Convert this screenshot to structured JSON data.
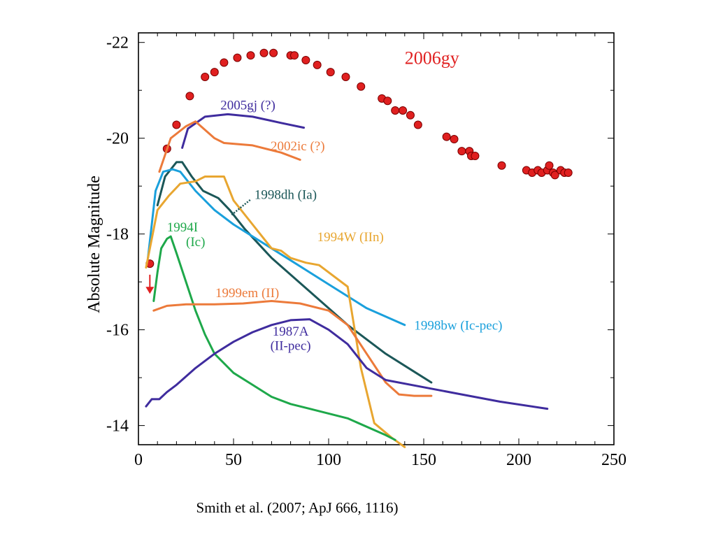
{
  "caption": "Smith et al. (2007; ApJ 666, 1116)",
  "chart_data": {
    "type": "line",
    "title": "",
    "xlabel": "",
    "ylabel": "Absolute Magnitude",
    "xlim": [
      0,
      250
    ],
    "ylim": [
      -13.6,
      -22.2
    ],
    "y_inverted": true,
    "x_ticks": [
      0,
      50,
      100,
      150,
      200,
      250
    ],
    "y_ticks": [
      -14,
      -16,
      -18,
      -20,
      -22
    ],
    "grid": false,
    "minor_ticks": true,
    "series": [
      {
        "name": "2006gy",
        "type": "scatter",
        "color": "#e02020",
        "points": [
          [
            6,
            -17.38
          ],
          [
            15,
            -19.78
          ],
          [
            20,
            -20.28
          ],
          [
            27,
            -20.88
          ],
          [
            35,
            -21.28
          ],
          [
            40,
            -21.38
          ],
          [
            45,
            -21.58
          ],
          [
            52,
            -21.68
          ],
          [
            59,
            -21.73
          ],
          [
            66,
            -21.78
          ],
          [
            71,
            -21.78
          ],
          [
            80,
            -21.73
          ],
          [
            82,
            -21.73
          ],
          [
            88,
            -21.63
          ],
          [
            94,
            -21.53
          ],
          [
            101,
            -21.38
          ],
          [
            109,
            -21.28
          ],
          [
            117,
            -21.08
          ],
          [
            128,
            -20.83
          ],
          [
            131,
            -20.78
          ],
          [
            135,
            -20.58
          ],
          [
            139,
            -20.58
          ],
          [
            143,
            -20.48
          ],
          [
            147,
            -20.28
          ],
          [
            162,
            -20.03
          ],
          [
            166,
            -19.98
          ],
          [
            170,
            -19.73
          ],
          [
            174,
            -19.73
          ],
          [
            175,
            -19.63
          ],
          [
            177,
            -19.63
          ],
          [
            191,
            -19.43
          ],
          [
            204,
            -19.33
          ],
          [
            207,
            -19.28
          ],
          [
            210,
            -19.33
          ],
          [
            212,
            -19.28
          ],
          [
            215,
            -19.33
          ],
          [
            216,
            -19.43
          ],
          [
            218,
            -19.28
          ],
          [
            219,
            -19.23
          ],
          [
            222,
            -19.33
          ],
          [
            224,
            -19.28
          ],
          [
            226,
            -19.28
          ]
        ]
      },
      {
        "name": "2005gj (?)",
        "color": "#3f2c9e",
        "points": [
          [
            23,
            -19.8
          ],
          [
            26,
            -20.2
          ],
          [
            35,
            -20.45
          ],
          [
            47,
            -20.5
          ],
          [
            60,
            -20.45
          ],
          [
            75,
            -20.32
          ],
          [
            87,
            -20.22
          ]
        ]
      },
      {
        "name": "2002ic (?)",
        "color": "#ec7a3a",
        "points": [
          [
            11,
            -19.3
          ],
          [
            17,
            -20.0
          ],
          [
            25,
            -20.25
          ],
          [
            30,
            -20.35
          ],
          [
            40,
            -20.0
          ],
          [
            45,
            -19.9
          ],
          [
            60,
            -19.85
          ],
          [
            75,
            -19.7
          ],
          [
            85,
            -19.55
          ]
        ]
      },
      {
        "name": "1998dh (Ia)",
        "color": "#1b5758",
        "points": [
          [
            10,
            -18.6
          ],
          [
            14,
            -19.2
          ],
          [
            20,
            -19.5
          ],
          [
            23,
            -19.5
          ],
          [
            28,
            -19.2
          ],
          [
            34,
            -18.9
          ],
          [
            42,
            -18.75
          ],
          [
            48,
            -18.5
          ],
          [
            56,
            -18.1
          ],
          [
            70,
            -17.5
          ],
          [
            90,
            -16.8
          ],
          [
            110,
            -16.1
          ],
          [
            130,
            -15.5
          ],
          [
            146,
            -15.1
          ],
          [
            154,
            -14.9
          ]
        ]
      },
      {
        "name": "1998bw (Ic-pec)",
        "color": "#1aa0dc",
        "points": [
          [
            5,
            -17.5
          ],
          [
            9,
            -18.9
          ],
          [
            13,
            -19.3
          ],
          [
            18,
            -19.35
          ],
          [
            22,
            -19.3
          ],
          [
            30,
            -18.9
          ],
          [
            40,
            -18.5
          ],
          [
            50,
            -18.2
          ],
          [
            60,
            -17.95
          ],
          [
            80,
            -17.45
          ],
          [
            100,
            -16.95
          ],
          [
            120,
            -16.45
          ],
          [
            140,
            -16.1
          ]
        ]
      },
      {
        "name": "1994W (IIn)",
        "color": "#e8a630",
        "points": [
          [
            4,
            -17.3
          ],
          [
            10,
            -18.5
          ],
          [
            16,
            -18.8
          ],
          [
            22,
            -19.05
          ],
          [
            30,
            -19.1
          ],
          [
            35,
            -19.2
          ],
          [
            45,
            -19.2
          ],
          [
            50,
            -18.7
          ],
          [
            60,
            -18.2
          ],
          [
            70,
            -17.7
          ],
          [
            75,
            -17.65
          ],
          [
            80,
            -17.5
          ],
          [
            88,
            -17.4
          ],
          [
            95,
            -17.35
          ],
          [
            110,
            -16.9
          ],
          [
            117,
            -15.2
          ],
          [
            124,
            -14.05
          ],
          [
            133,
            -13.75
          ],
          [
            140,
            -13.55
          ]
        ]
      },
      {
        "name": "1994I (Ic)",
        "color": "#1ea84a",
        "points": [
          [
            8,
            -16.6
          ],
          [
            10,
            -17.2
          ],
          [
            12,
            -17.7
          ],
          [
            15,
            -17.9
          ],
          [
            17,
            -17.95
          ],
          [
            20,
            -17.6
          ],
          [
            25,
            -17.0
          ],
          [
            30,
            -16.4
          ],
          [
            35,
            -15.9
          ],
          [
            40,
            -15.5
          ],
          [
            50,
            -15.1
          ],
          [
            60,
            -14.85
          ],
          [
            70,
            -14.6
          ],
          [
            80,
            -14.45
          ],
          [
            90,
            -14.35
          ],
          [
            110,
            -14.15
          ],
          [
            130,
            -13.8
          ],
          [
            135,
            -13.7
          ]
        ]
      },
      {
        "name": "1999em (II)",
        "color": "#ec7a3a",
        "points": [
          [
            8,
            -16.4
          ],
          [
            15,
            -16.5
          ],
          [
            25,
            -16.53
          ],
          [
            40,
            -16.53
          ],
          [
            55,
            -16.55
          ],
          [
            70,
            -16.6
          ],
          [
            85,
            -16.55
          ],
          [
            100,
            -16.4
          ],
          [
            110,
            -16.1
          ],
          [
            120,
            -15.5
          ],
          [
            130,
            -14.9
          ],
          [
            137,
            -14.65
          ],
          [
            145,
            -14.62
          ],
          [
            154,
            -14.62
          ]
        ]
      },
      {
        "name": "1987A (II-pec)",
        "color": "#3f2c9e",
        "points": [
          [
            4,
            -14.4
          ],
          [
            7,
            -14.55
          ],
          [
            11,
            -14.55
          ],
          [
            15,
            -14.7
          ],
          [
            20,
            -14.85
          ],
          [
            30,
            -15.2
          ],
          [
            40,
            -15.5
          ],
          [
            50,
            -15.75
          ],
          [
            60,
            -15.95
          ],
          [
            70,
            -16.1
          ],
          [
            80,
            -16.2
          ],
          [
            90,
            -16.22
          ],
          [
            100,
            -16.0
          ],
          [
            110,
            -15.7
          ],
          [
            120,
            -15.2
          ],
          [
            130,
            -14.95
          ],
          [
            150,
            -14.8
          ],
          [
            170,
            -14.65
          ],
          [
            190,
            -14.5
          ],
          [
            215,
            -14.35
          ]
        ]
      }
    ],
    "annotations": [
      {
        "text": "2006gy",
        "x": 140,
        "y": -21.55,
        "color": "#e02020",
        "size": "large"
      },
      {
        "text": "2005gj (?)",
        "x": 72,
        "y": -20.6,
        "color": "#3f2c9e",
        "anchor": "end"
      },
      {
        "text": "2002ic (?)",
        "x": 98,
        "y": -19.75,
        "color": "#ec7a3a",
        "anchor": "end"
      },
      {
        "text": "1998dh (Ia)",
        "x": 61,
        "y": -18.73,
        "color": "#1b5758",
        "anchor": "start"
      },
      {
        "text": "1994W (IIn)",
        "x": 94,
        "y": -17.85,
        "color": "#e8a630",
        "anchor": "start"
      },
      {
        "text": "1994I",
        "x": 15,
        "y": -18.05,
        "color": "#1ea84a",
        "anchor": "start"
      },
      {
        "text": "(Ic)",
        "x": 25,
        "y": -17.75,
        "color": "#1ea84a",
        "anchor": "start"
      },
      {
        "text": "1999em (II)",
        "x": 74,
        "y": -16.68,
        "color": "#ec7a3a",
        "anchor": "end"
      },
      {
        "text": "1998bw (Ic-pec)",
        "x": 145,
        "y": -16.0,
        "color": "#1aa0dc",
        "anchor": "start"
      },
      {
        "text": "1987A",
        "x": 80,
        "y": -15.88,
        "color": "#3f2c9e",
        "anchor": "middle"
      },
      {
        "text": "(II-pec)",
        "x": 80,
        "y": -15.58,
        "color": "#3f2c9e",
        "anchor": "middle"
      }
    ],
    "marker": {
      "name": "upper-limit-arrow",
      "x": 6,
      "y_from": -17.15,
      "y_to": -16.75,
      "color": "#e02020"
    },
    "connector": {
      "from": [
        49,
        -18.4
      ],
      "to": [
        59,
        -18.72
      ],
      "color": "#1b5758"
    }
  }
}
